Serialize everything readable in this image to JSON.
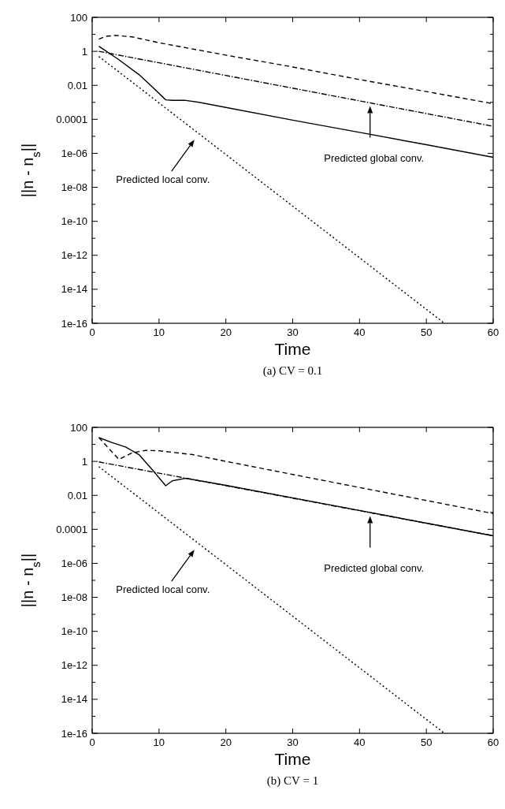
{
  "chart_data": [
    {
      "type": "line",
      "title": "(a)  CV = 0.1",
      "xlabel": "Time",
      "ylabel": "||n - n$_{s}$||",
      "log": "y",
      "xlim": [
        0,
        60
      ],
      "xticks": [
        0,
        10,
        20,
        30,
        40,
        50,
        60
      ],
      "ylim": [
        1e-16,
        100
      ],
      "yticks": [
        {
          "value": 1e-16,
          "label": "1e-16"
        },
        {
          "value": 1e-15,
          "label": null
        },
        {
          "value": 1e-14,
          "label": "1e-14"
        },
        {
          "value": 1e-13,
          "label": null
        },
        {
          "value": 1e-12,
          "label": "1e-12"
        },
        {
          "value": 1e-11,
          "label": null
        },
        {
          "value": 1e-10,
          "label": "1e-10"
        },
        {
          "value": 1e-09,
          "label": null
        },
        {
          "value": 1e-08,
          "label": "1e-08"
        },
        {
          "value": 1e-07,
          "label": null
        },
        {
          "value": 1e-06,
          "label": "1e-06"
        },
        {
          "value": 1e-05,
          "label": null
        },
        0.0001,
        {
          "value": 0.001,
          "label": null
        },
        0.01,
        {
          "value": 0.1,
          "label": null
        },
        1,
        {
          "value": 10,
          "label": null
        },
        100
      ],
      "series": [
        {
          "color": "#000000",
          "line_style": "dashed",
          "x": [
            1,
            2,
            3.5,
            6,
            10,
            20,
            30,
            40,
            50,
            60
          ],
          "values": [
            5.2,
            7.6,
            8.7,
            7.1,
            3.2,
            0.6,
            0.12,
            0.022,
            0.0043,
            0.00083
          ]
        },
        {
          "color": "#000000",
          "line_style": "dashdot",
          "x": [
            1,
            60
          ],
          "values": [
            1,
            3.9e-05
          ]
        },
        {
          "color": "#000000",
          "line_style": "solid",
          "x": [
            1,
            4,
            7,
            9,
            11,
            12,
            14,
            16,
            20,
            30,
            40,
            50,
            60
          ],
          "values": [
            2,
            0.32,
            0.043,
            0.008,
            0.0014,
            0.0013,
            0.0013,
            0.001,
            0.0005,
            9e-05,
            1.7e-05,
            3.2e-06,
            5.8e-07
          ]
        },
        {
          "color": "#000000",
          "line_style": "dotted",
          "x": [
            1,
            52.7
          ],
          "values": [
            0.5,
            1e-16
          ]
        }
      ],
      "annotations": [
        "Predicted local conv.",
        "Predicted global conv."
      ]
    },
    {
      "type": "line",
      "title": "(b)  CV = 1",
      "xlabel": "Time",
      "ylabel": "||n - n$_{s}$||",
      "log": "y",
      "xlim": [
        0,
        60
      ],
      "xticks": [
        0,
        10,
        20,
        30,
        40,
        50,
        60
      ],
      "ylim": [
        1e-16,
        100
      ],
      "yticks": [
        {
          "value": 1e-16,
          "label": "1e-16"
        },
        {
          "value": 1e-15,
          "label": null
        },
        {
          "value": 1e-14,
          "label": "1e-14"
        },
        {
          "value": 1e-13,
          "label": null
        },
        {
          "value": 1e-12,
          "label": "1e-12"
        },
        {
          "value": 1e-11,
          "label": null
        },
        {
          "value": 1e-10,
          "label": "1e-10"
        },
        {
          "value": 1e-09,
          "label": null
        },
        {
          "value": 1e-08,
          "label": "1e-08"
        },
        {
          "value": 1e-07,
          "label": null
        },
        {
          "value": 1e-06,
          "label": "1e-06"
        },
        {
          "value": 1e-05,
          "label": null
        },
        0.0001,
        {
          "value": 0.001,
          "label": null
        },
        0.01,
        {
          "value": 0.1,
          "label": null
        },
        1,
        {
          "value": 10,
          "label": null
        },
        100
      ],
      "series": [
        {
          "color": "#000000",
          "line_style": "dashed",
          "x": [
            1,
            4,
            6,
            8,
            10,
            15,
            20,
            30,
            40,
            50,
            60
          ],
          "values": [
            25,
            1.3,
            3.2,
            4.4,
            4.2,
            2.5,
            1.0,
            0.17,
            0.029,
            0.005,
            0.00085
          ]
        },
        {
          "color": "#000000",
          "line_style": "dashdot",
          "x": [
            1,
            60
          ],
          "values": [
            0.93,
            4.2e-05
          ]
        },
        {
          "color": "#000000",
          "line_style": "solid",
          "x": [
            1,
            3,
            5,
            7,
            9,
            11,
            12,
            14,
            20,
            30,
            40,
            50,
            60
          ],
          "values": [
            25,
            12.6,
            7,
            2.5,
            0.32,
            0.037,
            0.072,
            0.1,
            0.039,
            0.0071,
            0.0013,
            0.00023,
            4.2e-05
          ]
        },
        {
          "color": "#000000",
          "line_style": "dotted",
          "x": [
            1,
            52.7
          ],
          "values": [
            0.49,
            1e-16
          ]
        }
      ],
      "annotations": [
        "Predicted local conv.",
        "Predicted global conv."
      ]
    }
  ]
}
